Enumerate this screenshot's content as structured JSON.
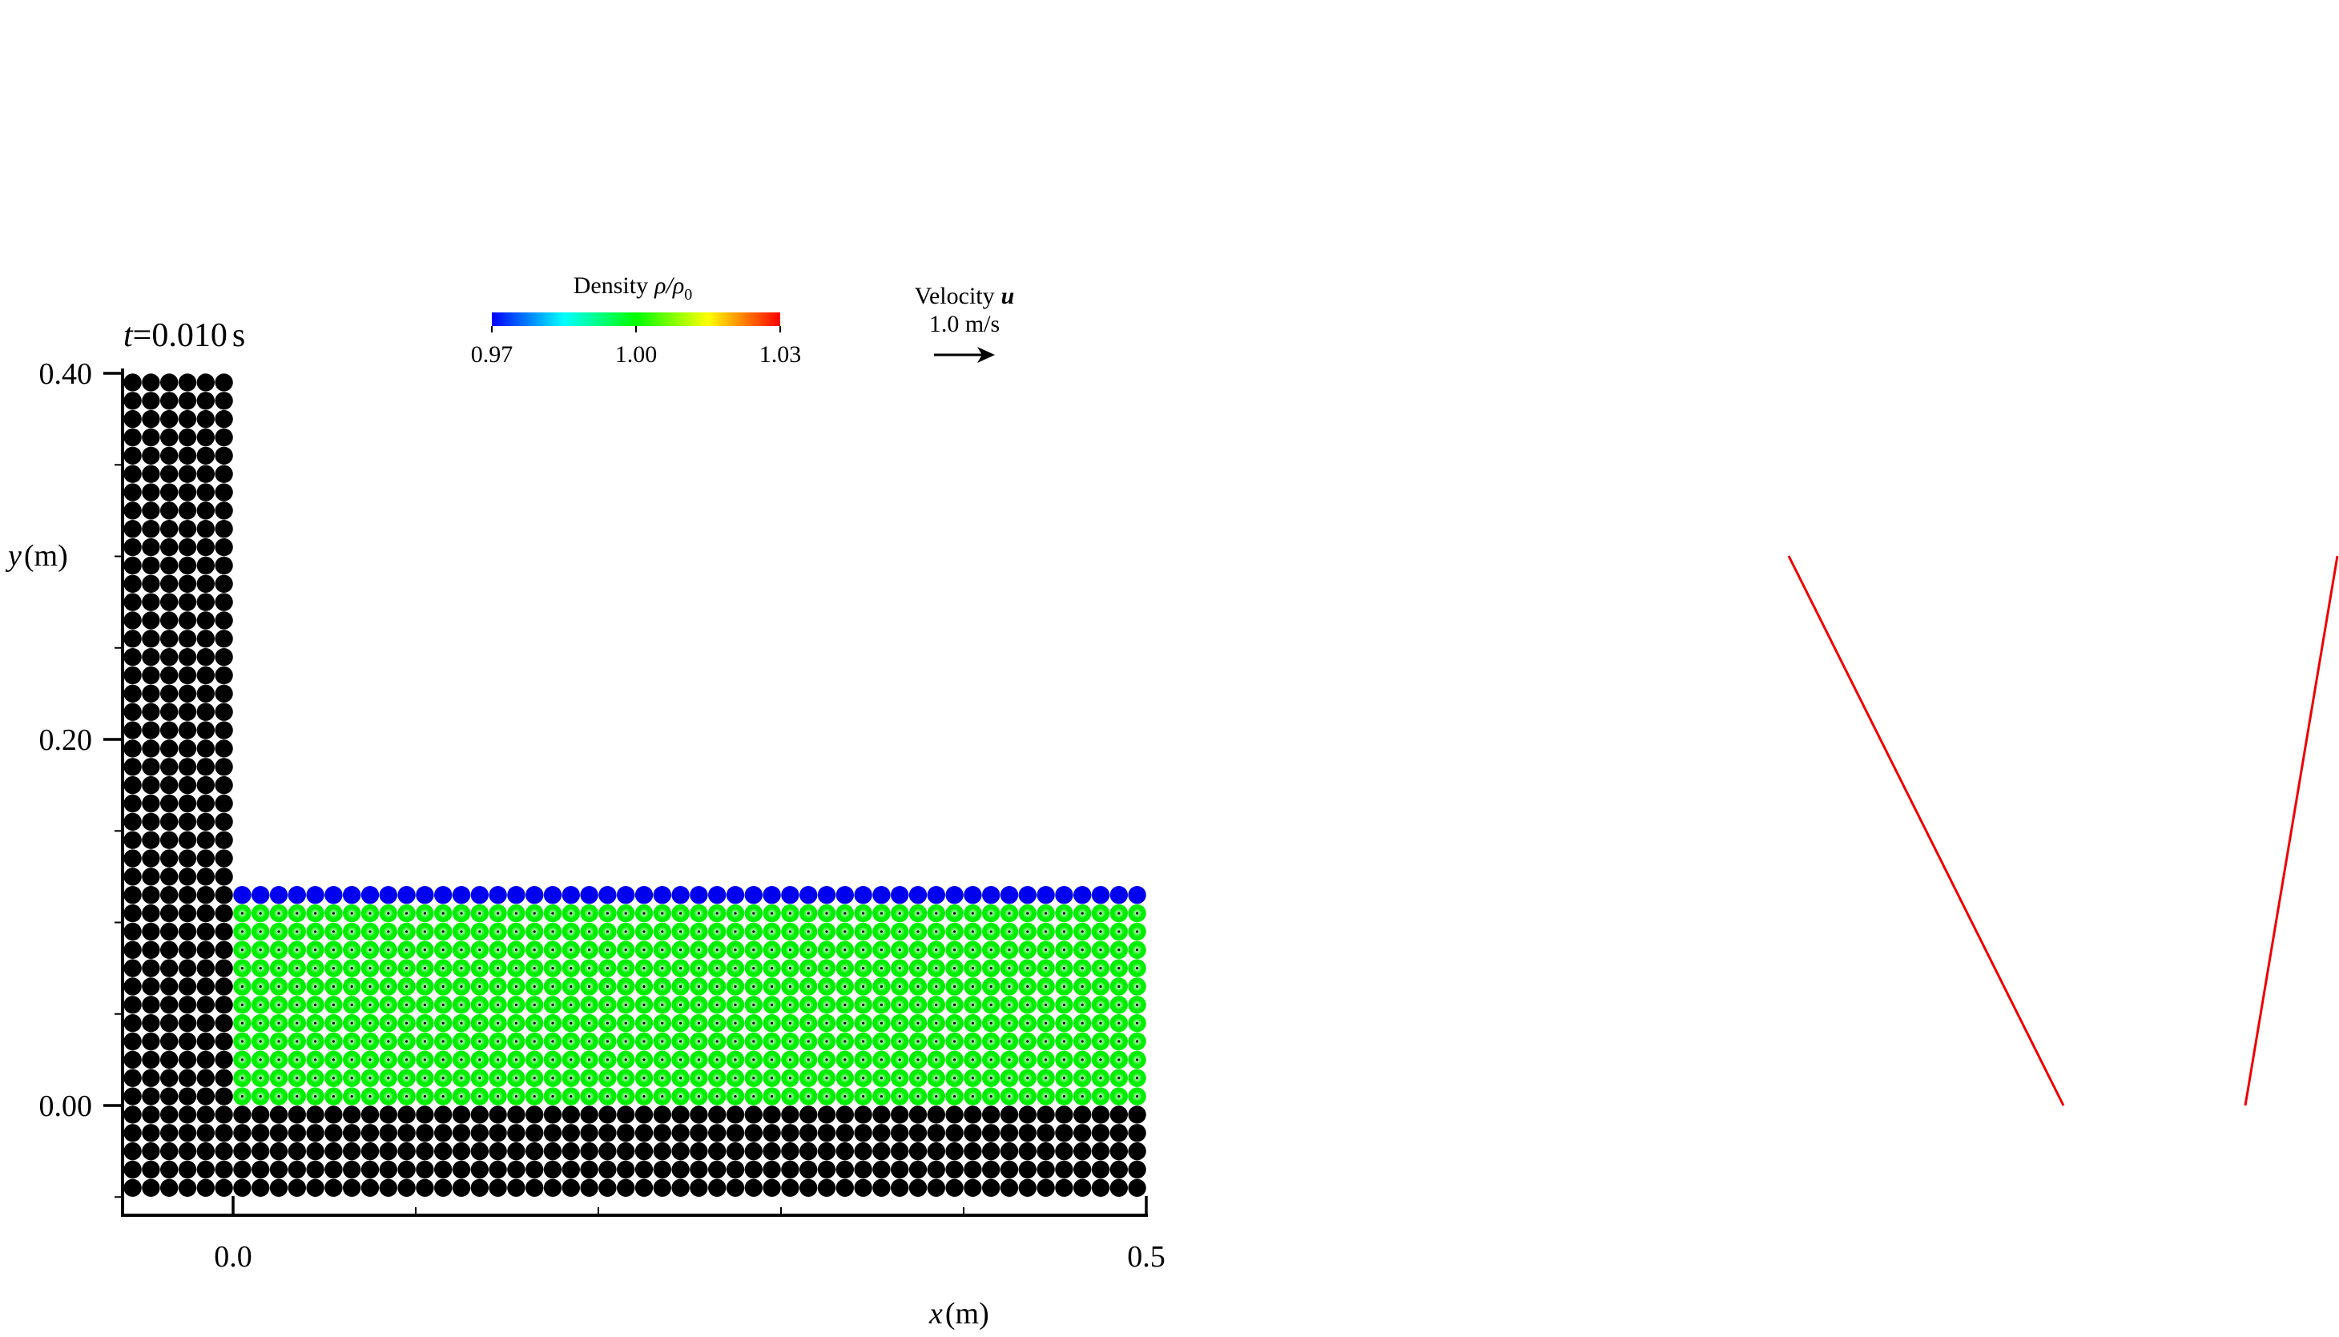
{
  "chart_data": {
    "type": "scatter",
    "title": "",
    "time_label": {
      "var": "t",
      "eq": "=",
      "value": "0.010",
      "unit": "s"
    },
    "xlabel": {
      "var": "x",
      "unit": "(m)"
    },
    "ylabel": {
      "var": "y",
      "unit": "(m)"
    },
    "xlim": [
      -0.06,
      0.5
    ],
    "ylim": [
      -0.06,
      0.4
    ],
    "x_ticks": [
      0.0,
      0.1,
      0.2,
      0.3,
      0.4,
      0.5
    ],
    "x_tick_labels": [
      "0.0",
      "0.5"
    ],
    "y_ticks": [
      -0.05,
      0.0,
      0.05,
      0.1,
      0.15,
      0.2,
      0.25,
      0.3,
      0.35,
      0.4
    ],
    "y_tick_labels": [
      "0.00",
      "0.20",
      "0.40"
    ],
    "particle_spacing": 0.01,
    "boundary_particles": {
      "color": "#000000",
      "regions": [
        {
          "x_range": [
            -0.055,
            -0.005
          ],
          "y_range": [
            -0.045,
            0.395
          ]
        },
        {
          "x_range": [
            0.005,
            0.495
          ],
          "y_range": [
            -0.045,
            -0.005
          ]
        }
      ]
    },
    "fluid_particles": {
      "x_range": [
        0.005,
        0.495
      ],
      "y_range": [
        0.005,
        0.115
      ],
      "interior_color": "#00ee00",
      "surface_color": "#0000ee"
    },
    "colorbar": {
      "title": "Density",
      "quantity": "ρ/ρ",
      "subscript": "0",
      "min": 0.97,
      "max": 1.03,
      "tick_labels": [
        "0.97",
        "1.00",
        "1.03"
      ],
      "colors": [
        "#0000ff",
        "#00ffff",
        "#00ff00",
        "#ffff00",
        "#ff0000"
      ]
    },
    "velocity_legend": {
      "label": "Velocity",
      "symbol": "u",
      "reference": "1.0 m/s"
    },
    "annotations": {
      "red_lines_color": "#ee0000"
    }
  }
}
